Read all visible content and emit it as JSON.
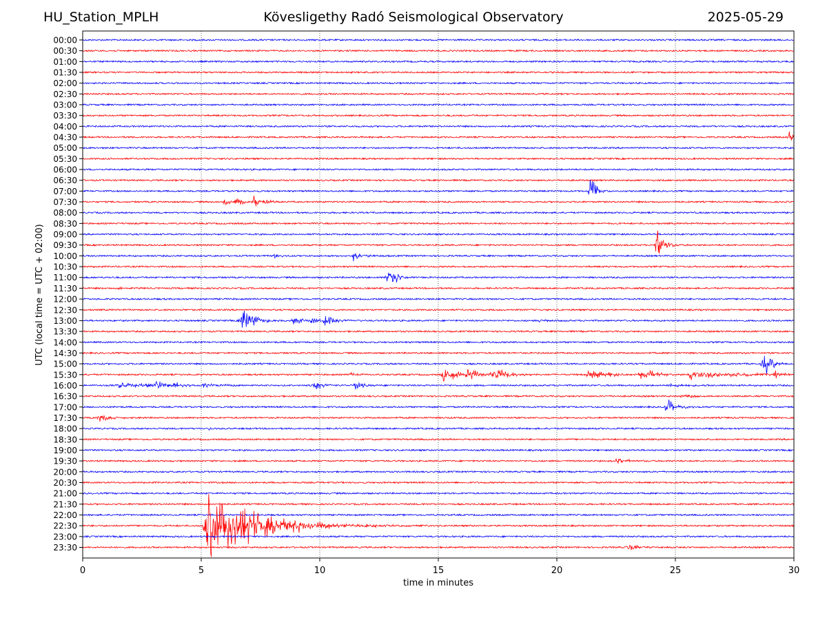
{
  "header": {
    "station": "HU_Station_MPLH",
    "observatory": "Kövesligethy Radó Seismological Observatory",
    "date": "2025-05-29"
  },
  "chart_data": {
    "type": "line",
    "title": "Kövesligethy Radó Seismological Observatory",
    "xlabel": "time in minutes",
    "ylabel": "UTC (local time = UTC + 02:00)",
    "xlim": [
      0,
      30
    ],
    "x_ticks": [
      "0",
      "5",
      "10",
      "15",
      "20",
      "25",
      "30"
    ],
    "x_tick_values": [
      0,
      5,
      10,
      15,
      20,
      25,
      30
    ],
    "grid": "vertical-dotted",
    "colors": {
      "even_rows": "#0000ff",
      "odd_rows": "#ff0000"
    },
    "rows": [
      "00:00",
      "00:30",
      "01:00",
      "01:30",
      "02:00",
      "02:30",
      "03:00",
      "03:30",
      "04:00",
      "04:30",
      "05:00",
      "05:30",
      "06:00",
      "06:30",
      "07:00",
      "07:30",
      "08:00",
      "08:30",
      "09:00",
      "09:30",
      "10:00",
      "10:30",
      "11:00",
      "11:30",
      "12:00",
      "12:30",
      "13:00",
      "13:30",
      "14:00",
      "14:30",
      "15:00",
      "15:30",
      "16:00",
      "16:30",
      "17:00",
      "17:30",
      "18:00",
      "18:30",
      "19:00",
      "19:30",
      "20:00",
      "20:30",
      "21:00",
      "21:30",
      "22:00",
      "22:30",
      "23:00",
      "23:30"
    ],
    "events": [
      {
        "row": "04:30",
        "t": 29.8,
        "amp": 10,
        "dur": 0.4
      },
      {
        "row": "07:00",
        "t": 21.4,
        "amp": 28,
        "dur": 0.4
      },
      {
        "row": "07:30",
        "t": 5.9,
        "amp": 9,
        "dur": 0.4
      },
      {
        "row": "07:30",
        "t": 6.5,
        "amp": 10,
        "dur": 0.4
      },
      {
        "row": "07:30",
        "t": 7.2,
        "amp": 11,
        "dur": 0.4
      },
      {
        "row": "07:30",
        "t": 7.7,
        "amp": 9,
        "dur": 0.3
      },
      {
        "row": "09:30",
        "t": 24.2,
        "amp": 30,
        "dur": 0.5
      },
      {
        "row": "10:00",
        "t": 8.1,
        "amp": 6,
        "dur": 0.3
      },
      {
        "row": "10:00",
        "t": 11.4,
        "amp": 10,
        "dur": 0.5
      },
      {
        "row": "10:00",
        "t": 11.9,
        "amp": 7,
        "dur": 0.3
      },
      {
        "row": "11:00",
        "t": 12.9,
        "amp": 28,
        "dur": 0.5
      },
      {
        "row": "11:30",
        "t": 1.6,
        "amp": 4,
        "dur": 0.3
      },
      {
        "row": "13:00",
        "t": 6.7,
        "amp": 32,
        "dur": 0.7
      },
      {
        "row": "13:00",
        "t": 8.9,
        "amp": 9,
        "dur": 0.5
      },
      {
        "row": "13:00",
        "t": 9.6,
        "amp": 7,
        "dur": 0.5
      },
      {
        "row": "13:00",
        "t": 10.2,
        "amp": 12,
        "dur": 0.6
      },
      {
        "row": "13:00",
        "t": 19.3,
        "amp": 5,
        "dur": 0.4
      },
      {
        "row": "15:00",
        "t": 28.7,
        "amp": 22,
        "dur": 0.6
      },
      {
        "row": "15:30",
        "t": 11.3,
        "amp": 5,
        "dur": 0.4
      },
      {
        "row": "15:30",
        "t": 15.2,
        "amp": 12,
        "dur": 1.4
      },
      {
        "row": "15:30",
        "t": 16.2,
        "amp": 11,
        "dur": 0.9
      },
      {
        "row": "15:30",
        "t": 17.3,
        "amp": 10,
        "dur": 1.3
      },
      {
        "row": "15:30",
        "t": 21.3,
        "amp": 9,
        "dur": 1.4
      },
      {
        "row": "15:30",
        "t": 23.5,
        "amp": 10,
        "dur": 1.2
      },
      {
        "row": "15:30",
        "t": 25.6,
        "amp": 10,
        "dur": 2.4
      },
      {
        "row": "15:30",
        "t": 29.2,
        "amp": 9,
        "dur": 0.5
      },
      {
        "row": "16:00",
        "t": 1.5,
        "amp": 5,
        "dur": 3.0
      },
      {
        "row": "16:00",
        "t": 3.1,
        "amp": 12,
        "dur": 0.5
      },
      {
        "row": "16:00",
        "t": 3.8,
        "amp": 8,
        "dur": 0.4
      },
      {
        "row": "16:00",
        "t": 5.1,
        "amp": 7,
        "dur": 0.4
      },
      {
        "row": "16:00",
        "t": 5.8,
        "amp": 5,
        "dur": 0.3
      },
      {
        "row": "16:00",
        "t": 9.8,
        "amp": 10,
        "dur": 0.5
      },
      {
        "row": "16:00",
        "t": 11.5,
        "amp": 9,
        "dur": 0.4
      },
      {
        "row": "16:00",
        "t": 24.8,
        "amp": 8,
        "dur": 0.5
      },
      {
        "row": "16:30",
        "t": 25.2,
        "amp": 4,
        "dur": 1.2
      },
      {
        "row": "17:00",
        "t": 24.6,
        "amp": 14,
        "dur": 0.7
      },
      {
        "row": "17:30",
        "t": 0.7,
        "amp": 9,
        "dur": 0.6
      },
      {
        "row": "18:00",
        "t": 5.3,
        "amp": 3,
        "dur": 0.4
      },
      {
        "row": "19:30",
        "t": 22.5,
        "amp": 5,
        "dur": 0.8
      },
      {
        "row": "22:30",
        "t": 5.2,
        "amp": 70,
        "dur": 3.2
      },
      {
        "row": "23:30",
        "t": 23.0,
        "amp": 8,
        "dur": 0.6
      }
    ]
  }
}
